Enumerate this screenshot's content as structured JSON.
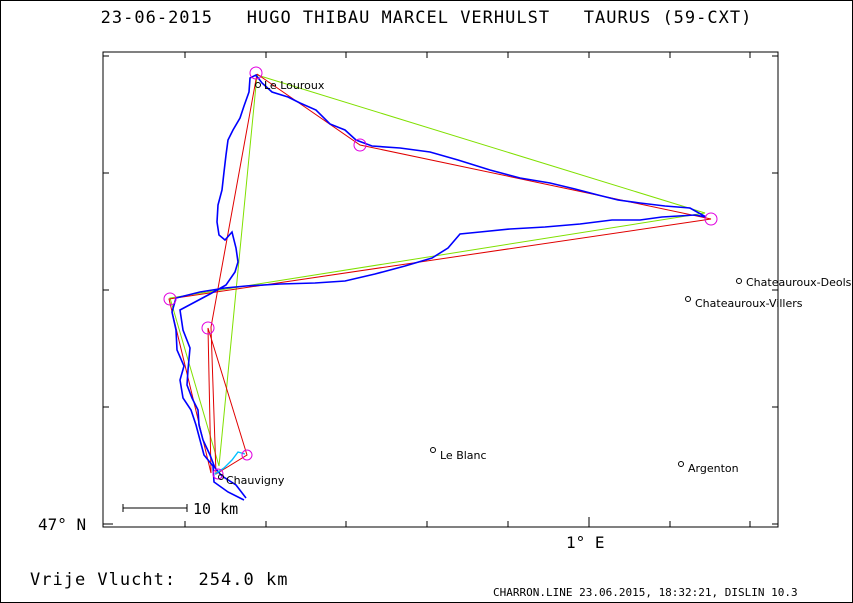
{
  "header": {
    "date": "23-06-2015",
    "pilots": "HUGO THIBAU MARCEL VERHULST",
    "glider": "TAURUS (59-CXT)"
  },
  "axes": {
    "lat_label": "47° N",
    "lon_label": "1° E"
  },
  "scale_bar": {
    "label": "10 km"
  },
  "places": [
    {
      "name": "Le Louroux"
    },
    {
      "name": "Chateauroux-Deols"
    },
    {
      "name": "Chateauroux-Villers"
    },
    {
      "name": "Le Blanc"
    },
    {
      "name": "Argenton"
    },
    {
      "name": "Chauvigny"
    }
  ],
  "flight": {
    "label": "Vrije Vlucht:",
    "distance": "254.0 km"
  },
  "footer": {
    "program_info": "CHARRON.LINE 23.06.2015, 18:32:21, DISLIN 10.3"
  },
  "colors": {
    "track": "#0000ff",
    "track_end": "#00c0ff",
    "task_red": "#e00000",
    "task_green": "#80e000",
    "turnpoint": "#e000e0",
    "frame": "#000000"
  }
}
